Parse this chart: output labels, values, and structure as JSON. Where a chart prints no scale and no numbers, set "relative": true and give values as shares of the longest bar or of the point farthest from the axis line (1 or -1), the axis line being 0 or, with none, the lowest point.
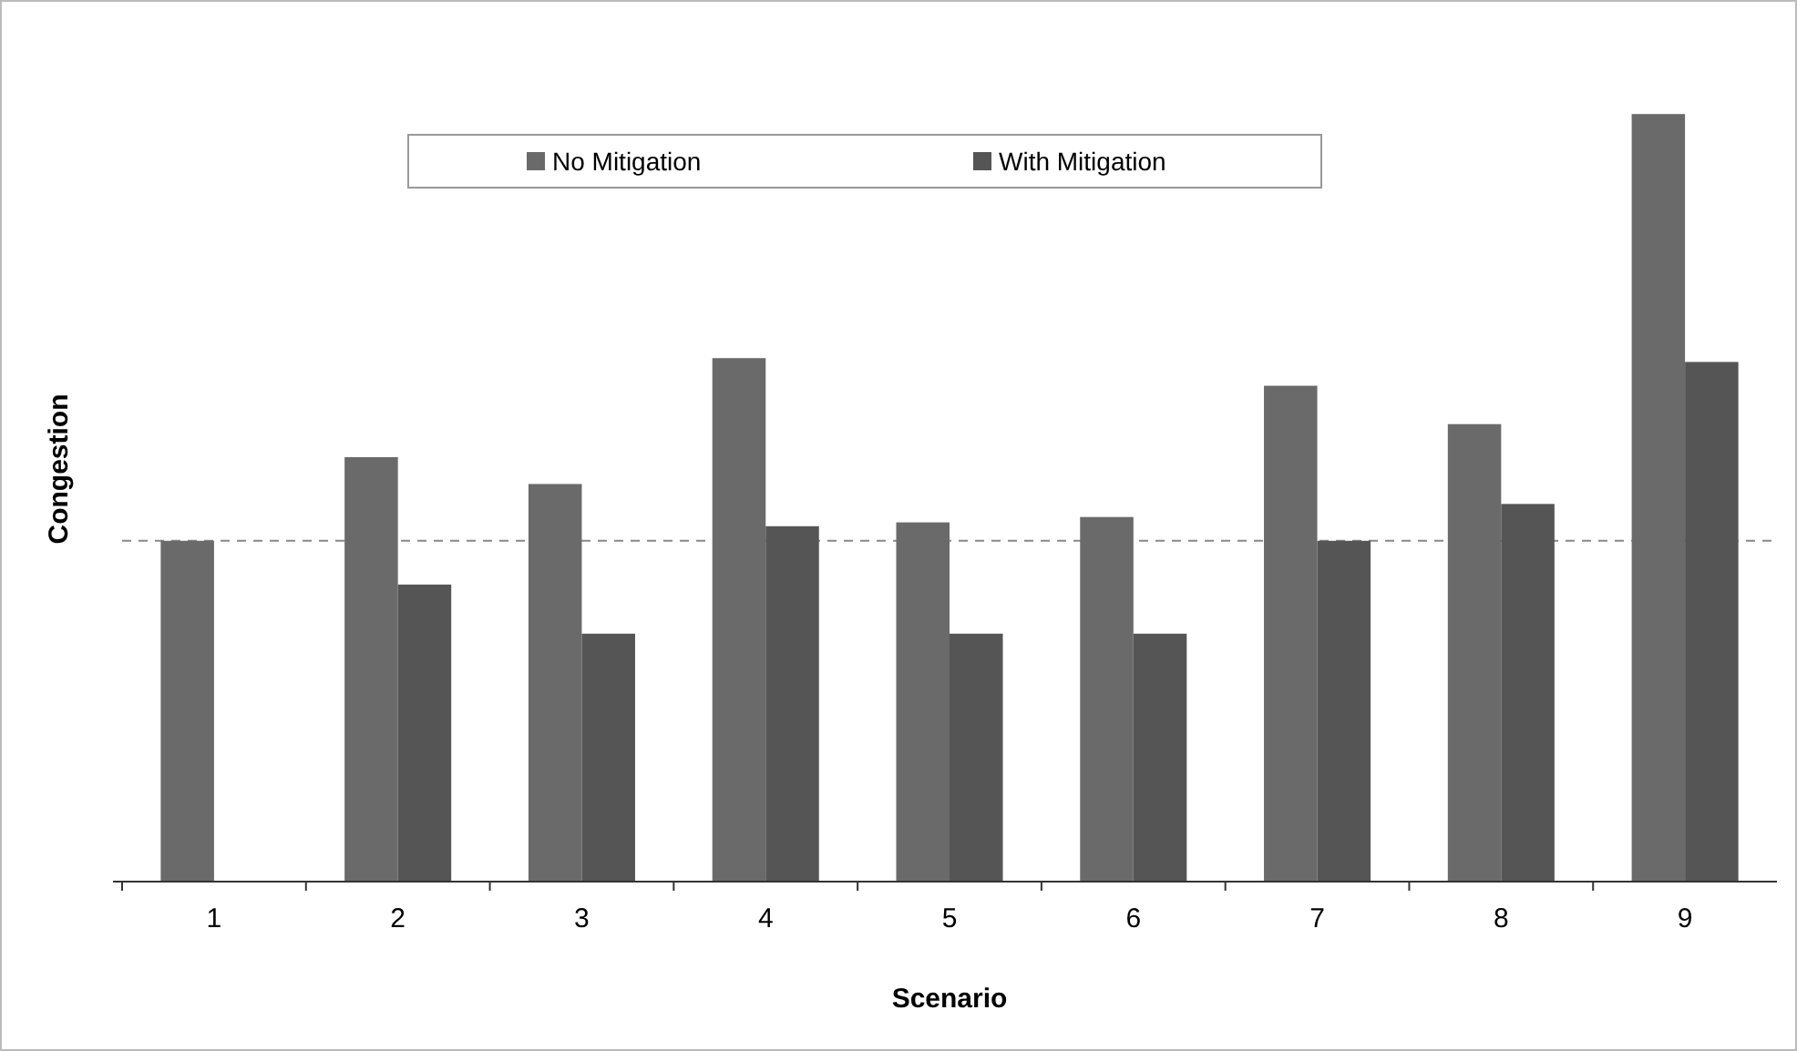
{
  "chart_data": {
    "type": "bar",
    "relative": true,
    "xlabel": "Scenario",
    "ylabel": "Congestion",
    "categories": [
      "1",
      "2",
      "3",
      "4",
      "5",
      "6",
      "7",
      "8",
      "9"
    ],
    "series": [
      {
        "name": "No Mitigation",
        "color": "#6a6a6a",
        "values": [
          0.444,
          0.553,
          0.518,
          0.682,
          0.468,
          0.475,
          0.646,
          0.596,
          1
        ]
      },
      {
        "name": "With Mitigation",
        "color": "#555555",
        "values": [
          null,
          0.387,
          0.323,
          0.463,
          0.323,
          0.323,
          0.444,
          0.492,
          0.677
        ]
      }
    ],
    "ref_lines": [
      {
        "axis": "y",
        "value": 0.444,
        "color": "#888888",
        "line_style": "dashed"
      }
    ],
    "legend": "top",
    "grid": false
  }
}
